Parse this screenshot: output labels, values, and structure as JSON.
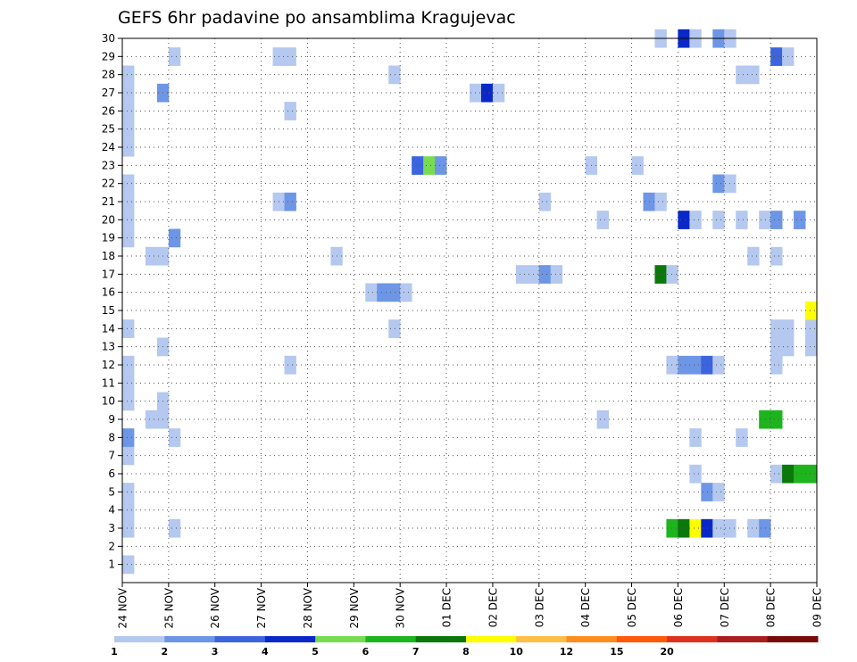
{
  "chart_data": {
    "type": "heatmap",
    "title": "GEFS 6hr padavine po ansamblima Kragujevac",
    "xlabel": "",
    "ylabel": "",
    "x_range": [
      0,
      60
    ],
    "ylim": [
      0,
      30
    ],
    "x_tick_labels": [
      "24 NOV",
      "25 NOV",
      "26 NOV",
      "27 NOV",
      "28 NOV",
      "29 NOV",
      "30 NOV",
      "01 DEC",
      "02 DEC",
      "03 DEC",
      "04 DEC",
      "05 DEC",
      "06 DEC",
      "07 DEC",
      "08 DEC",
      "09 DEC"
    ],
    "x_tick_values": [
      0,
      4,
      8,
      12,
      16,
      20,
      24,
      28,
      32,
      36,
      40,
      44,
      48,
      52,
      56,
      60
    ],
    "y_tick_labels": [
      "1",
      "2",
      "3",
      "4",
      "5",
      "6",
      "7",
      "8",
      "9",
      "10",
      "11",
      "12",
      "13",
      "14",
      "15",
      "16",
      "17",
      "18",
      "19",
      "20",
      "21",
      "22",
      "23",
      "24",
      "25",
      "26",
      "27",
      "28",
      "29",
      "30"
    ],
    "grid": true,
    "colorbar": {
      "labels": [
        "1",
        "2",
        "3",
        "4",
        "5",
        "6",
        "7",
        "8",
        "10",
        "12",
        "15",
        "20"
      ],
      "colors": [
        "#b4c8f0",
        "#6e96e6",
        "#3c64dc",
        "#0a28c8",
        "#78dc50",
        "#1eb41e",
        "#0a780a",
        "#ffff00",
        "#ffbe46",
        "#ff8c1e",
        "#ff5a0a",
        "#dc321e",
        "#aa1e1e",
        "#780a0a"
      ]
    },
    "cells": [
      {
        "x": 0,
        "y": 1,
        "v": 1
      },
      {
        "x": 0,
        "y": 3,
        "v": 1
      },
      {
        "x": 0,
        "y": 4,
        "v": 1
      },
      {
        "x": 0,
        "y": 5,
        "v": 1
      },
      {
        "x": 0,
        "y": 7,
        "v": 1
      },
      {
        "x": 0,
        "y": 8,
        "v": 2
      },
      {
        "x": 0,
        "y": 10,
        "v": 1
      },
      {
        "x": 0,
        "y": 11,
        "v": 1
      },
      {
        "x": 0,
        "y": 12,
        "v": 1
      },
      {
        "x": 0,
        "y": 14,
        "v": 1
      },
      {
        "x": 0,
        "y": 19,
        "v": 1
      },
      {
        "x": 0,
        "y": 20,
        "v": 1
      },
      {
        "x": 0,
        "y": 21,
        "v": 1
      },
      {
        "x": 0,
        "y": 22,
        "v": 1
      },
      {
        "x": 0,
        "y": 24,
        "v": 1
      },
      {
        "x": 0,
        "y": 25,
        "v": 1
      },
      {
        "x": 0,
        "y": 26,
        "v": 1
      },
      {
        "x": 0,
        "y": 27,
        "v": 1
      },
      {
        "x": 0,
        "y": 28,
        "v": 1
      },
      {
        "x": 2,
        "y": 9,
        "v": 1
      },
      {
        "x": 2,
        "y": 18,
        "v": 1
      },
      {
        "x": 3,
        "y": 9,
        "v": 1
      },
      {
        "x": 3,
        "y": 10,
        "v": 1
      },
      {
        "x": 3,
        "y": 13,
        "v": 1
      },
      {
        "x": 3,
        "y": 18,
        "v": 1
      },
      {
        "x": 3,
        "y": 27,
        "v": 2
      },
      {
        "x": 4,
        "y": 3,
        "v": 1
      },
      {
        "x": 4,
        "y": 8,
        "v": 1
      },
      {
        "x": 4,
        "y": 19,
        "v": 2
      },
      {
        "x": 4,
        "y": 29,
        "v": 1
      },
      {
        "x": 13,
        "y": 21,
        "v": 1
      },
      {
        "x": 13,
        "y": 29,
        "v": 1
      },
      {
        "x": 14,
        "y": 12,
        "v": 1
      },
      {
        "x": 14,
        "y": 21,
        "v": 2
      },
      {
        "x": 14,
        "y": 26,
        "v": 1
      },
      {
        "x": 14,
        "y": 29,
        "v": 1
      },
      {
        "x": 18,
        "y": 18,
        "v": 1
      },
      {
        "x": 21,
        "y": 16,
        "v": 1
      },
      {
        "x": 22,
        "y": 16,
        "v": 2
      },
      {
        "x": 23,
        "y": 16,
        "v": 2
      },
      {
        "x": 24,
        "y": 16,
        "v": 1
      },
      {
        "x": 23,
        "y": 14,
        "v": 1
      },
      {
        "x": 23,
        "y": 28,
        "v": 1
      },
      {
        "x": 25,
        "y": 23,
        "v": 3
      },
      {
        "x": 26,
        "y": 23,
        "v": 5
      },
      {
        "x": 27,
        "y": 23,
        "v": 2
      },
      {
        "x": 30,
        "y": 27,
        "v": 1
      },
      {
        "x": 31,
        "y": 27,
        "v": 4
      },
      {
        "x": 32,
        "y": 27,
        "v": 1
      },
      {
        "x": 34,
        "y": 17,
        "v": 1
      },
      {
        "x": 35,
        "y": 17,
        "v": 1
      },
      {
        "x": 36,
        "y": 17,
        "v": 2
      },
      {
        "x": 37,
        "y": 17,
        "v": 1
      },
      {
        "x": 36,
        "y": 21,
        "v": 1
      },
      {
        "x": 40,
        "y": 23,
        "v": 1
      },
      {
        "x": 41,
        "y": 9,
        "v": 1
      },
      {
        "x": 41,
        "y": 20,
        "v": 1
      },
      {
        "x": 44,
        "y": 23,
        "v": 1
      },
      {
        "x": 45,
        "y": 21,
        "v": 2
      },
      {
        "x": 46,
        "y": 21,
        "v": 1
      },
      {
        "x": 46,
        "y": 17,
        "v": 7
      },
      {
        "x": 47,
        "y": 17,
        "v": 1
      },
      {
        "x": 46,
        "y": 30,
        "v": 1
      },
      {
        "x": 48,
        "y": 30,
        "v": 4
      },
      {
        "x": 49,
        "y": 30,
        "v": 1
      },
      {
        "x": 51,
        "y": 30,
        "v": 2
      },
      {
        "x": 52,
        "y": 30,
        "v": 1
      },
      {
        "x": 48,
        "y": 20,
        "v": 4
      },
      {
        "x": 49,
        "y": 20,
        "v": 1
      },
      {
        "x": 51,
        "y": 20,
        "v": 1
      },
      {
        "x": 53,
        "y": 20,
        "v": 1
      },
      {
        "x": 55,
        "y": 20,
        "v": 1
      },
      {
        "x": 56,
        "y": 20,
        "v": 2
      },
      {
        "x": 58,
        "y": 20,
        "v": 2
      },
      {
        "x": 51,
        "y": 22,
        "v": 2
      },
      {
        "x": 52,
        "y": 22,
        "v": 1
      },
      {
        "x": 47,
        "y": 12,
        "v": 1
      },
      {
        "x": 48,
        "y": 12,
        "v": 2
      },
      {
        "x": 49,
        "y": 12,
        "v": 2
      },
      {
        "x": 50,
        "y": 12,
        "v": 3
      },
      {
        "x": 51,
        "y": 12,
        "v": 1
      },
      {
        "x": 49,
        "y": 8,
        "v": 1
      },
      {
        "x": 49,
        "y": 6,
        "v": 1
      },
      {
        "x": 50,
        "y": 5,
        "v": 2
      },
      {
        "x": 51,
        "y": 5,
        "v": 1
      },
      {
        "x": 47,
        "y": 3,
        "v": 6
      },
      {
        "x": 48,
        "y": 3,
        "v": 7
      },
      {
        "x": 49,
        "y": 3,
        "v": 8
      },
      {
        "x": 50,
        "y": 3,
        "v": 4
      },
      {
        "x": 51,
        "y": 3,
        "v": 1
      },
      {
        "x": 52,
        "y": 3,
        "v": 1
      },
      {
        "x": 54,
        "y": 3,
        "v": 1
      },
      {
        "x": 55,
        "y": 3,
        "v": 2
      },
      {
        "x": 53,
        "y": 8,
        "v": 1
      },
      {
        "x": 53,
        "y": 28,
        "v": 1
      },
      {
        "x": 54,
        "y": 28,
        "v": 1
      },
      {
        "x": 54,
        "y": 18,
        "v": 1
      },
      {
        "x": 56,
        "y": 18,
        "v": 1
      },
      {
        "x": 55,
        "y": 9,
        "v": 6
      },
      {
        "x": 56,
        "y": 9,
        "v": 6
      },
      {
        "x": 56,
        "y": 6,
        "v": 1
      },
      {
        "x": 57,
        "y": 6,
        "v": 7
      },
      {
        "x": 58,
        "y": 6,
        "v": 6
      },
      {
        "x": 59,
        "y": 6,
        "v": 6
      },
      {
        "x": 56,
        "y": 12,
        "v": 1
      },
      {
        "x": 56,
        "y": 13,
        "v": 1
      },
      {
        "x": 56,
        "y": 14,
        "v": 1
      },
      {
        "x": 57,
        "y": 13,
        "v": 1
      },
      {
        "x": 57,
        "y": 14,
        "v": 1
      },
      {
        "x": 59,
        "y": 13,
        "v": 1
      },
      {
        "x": 59,
        "y": 14,
        "v": 1
      },
      {
        "x": 59,
        "y": 15,
        "v": 8
      },
      {
        "x": 56,
        "y": 29,
        "v": 3
      },
      {
        "x": 57,
        "y": 29,
        "v": 1
      }
    ]
  }
}
